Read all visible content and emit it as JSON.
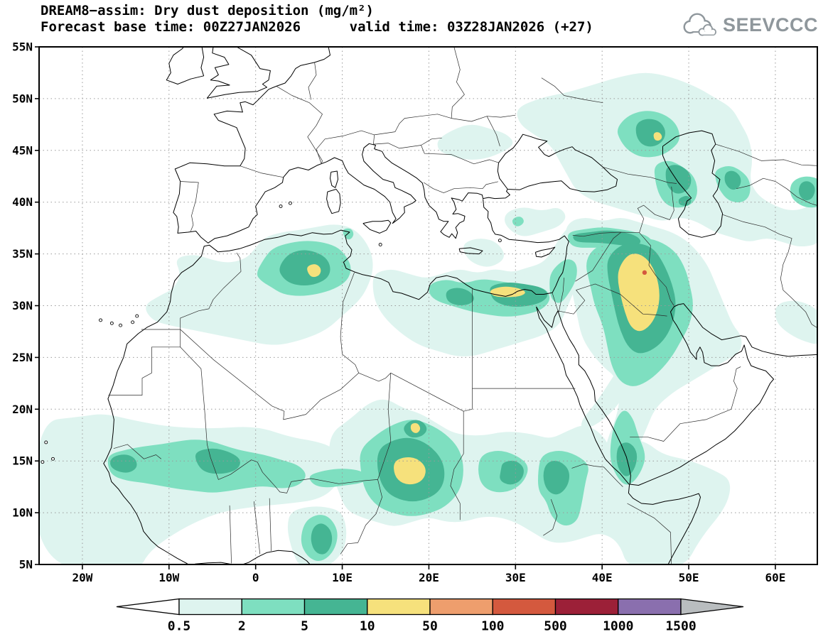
{
  "header": {
    "title": "DREAM8−assim: Dry dust deposition (mg/m²)",
    "subtitle": "Forecast base time: 00Z27JAN2026      valid time: 03Z28JAN2026 (+27)",
    "brand": "SEEVCCC"
  },
  "axes": {
    "lat_labels": [
      "55N",
      "50N",
      "45N",
      "40N",
      "35N",
      "30N",
      "25N",
      "20N",
      "15N",
      "10N",
      "5N"
    ],
    "lat_values": [
      55,
      50,
      45,
      40,
      35,
      30,
      25,
      20,
      15,
      10,
      5
    ],
    "lon_labels": [
      "20W",
      "10W",
      "0",
      "10E",
      "20E",
      "30E",
      "40E",
      "50E",
      "60E"
    ],
    "lon_values": [
      -20,
      -10,
      0,
      10,
      20,
      30,
      40,
      50,
      60
    ]
  },
  "colorbar": {
    "labels": [
      "0.5",
      "2",
      "5",
      "10",
      "50",
      "100",
      "500",
      "1000",
      "1500"
    ],
    "levels": [
      0.5,
      2,
      5,
      10,
      50,
      100,
      500,
      1000,
      1500
    ],
    "colors": [
      "#def4ef",
      "#7edfc0",
      "#45b593",
      "#f6e17c",
      "#ee9e6d",
      "#d4593e",
      "#9c2038",
      "#8a6fae"
    ],
    "left_arrow": "#ffffff",
    "right_arrow": "#b9bdbf"
  }
}
